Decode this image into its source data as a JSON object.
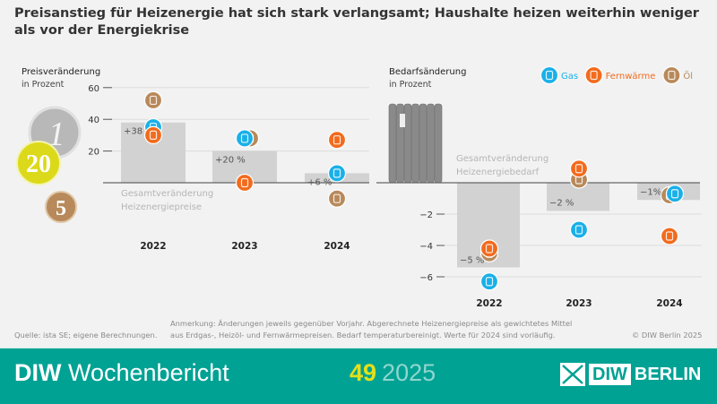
{
  "title": "Preisanstieg für Heizenergie hat sich stark verlangsamt; Haushalte heizen weiterhin weniger als vor der Energiekrise",
  "legend": [
    {
      "key": "gas",
      "label": "Gas",
      "color": "#1ab0e8",
      "icon": "flame-drop-icon"
    },
    {
      "key": "fern",
      "label": "Fernwärme",
      "color": "#f26b1d",
      "icon": "district-heating-house-icon"
    },
    {
      "key": "oil",
      "label": "Öl",
      "color": "#b8895a",
      "icon": "oil-barrel-icon"
    }
  ],
  "chart_data": [
    {
      "type": "bar",
      "ylabel": "Preisveränderung",
      "yunit": "in Prozent",
      "categories": [
        "2022",
        "2023",
        "2024"
      ],
      "ylim": [
        -15,
        65
      ],
      "yticks": [
        20,
        40,
        60
      ],
      "ytick_labels": [
        "20",
        "40",
        "60"
      ],
      "bar_caption": [
        "Gesamtveränderung",
        "Heizenergiepreise"
      ],
      "bar_color": "#d2d2d2",
      "values": [
        38,
        20,
        6
      ],
      "value_labels": [
        "+38 %",
        "+20 %",
        "+6 %"
      ],
      "series": [
        {
          "name": "Gas",
          "values": [
            35,
            28,
            6
          ]
        },
        {
          "name": "Fernwärme",
          "values": [
            30,
            0,
            27
          ]
        },
        {
          "name": "Öl",
          "values": [
            52,
            28,
            -10
          ]
        }
      ]
    },
    {
      "type": "bar",
      "ylabel": "Bedarfsänderung",
      "yunit": "in Prozent",
      "categories": [
        "2022",
        "2023",
        "2024"
      ],
      "ylim": [
        -6.8,
        4
      ],
      "yticks": [
        -2,
        -4,
        -6
      ],
      "ytick_labels": [
        "−2",
        "−4",
        "−6"
      ],
      "bar_caption": [
        "Gesamtveränderung",
        "Heizenergiebedarf"
      ],
      "bar_color": "#d2d2d2",
      "values": [
        -5.4,
        -1.8,
        -1.1
      ],
      "value_labels": [
        "−5 %",
        "−2 %",
        "−1%"
      ],
      "series": [
        {
          "name": "Gas",
          "values": [
            -6.3,
            -3.0,
            -0.7
          ]
        },
        {
          "name": "Fernwärme",
          "values": [
            -4.2,
            0.9,
            -3.4
          ]
        },
        {
          "name": "Öl",
          "values": [
            -4.5,
            0.2,
            -0.8
          ]
        }
      ]
    }
  ],
  "notes": {
    "source": "Quelle: ista SE; eigene Berechnungen.",
    "remark_line1": "Anmerkung: Änderungen jeweils gegenüber Vorjahr. Abgerechnete Heizenergiepreise als gewichtetes Mittel",
    "remark_line2": "aus Erdgas-, Heizöl- und Fernwärmepreisen. Bedarf temperaturbereinigt. Werte für 2024 sind vorläufig.",
    "copyright": "© DIW Berlin 2025"
  },
  "coins": [
    "1",
    "20",
    "5"
  ],
  "footer": {
    "brand_bold": "DIW",
    "brand_light": "Wochenbericht",
    "issue_number": "49",
    "issue_year": "2025",
    "logo_box": "DIW",
    "logo_text": "BERLIN"
  }
}
